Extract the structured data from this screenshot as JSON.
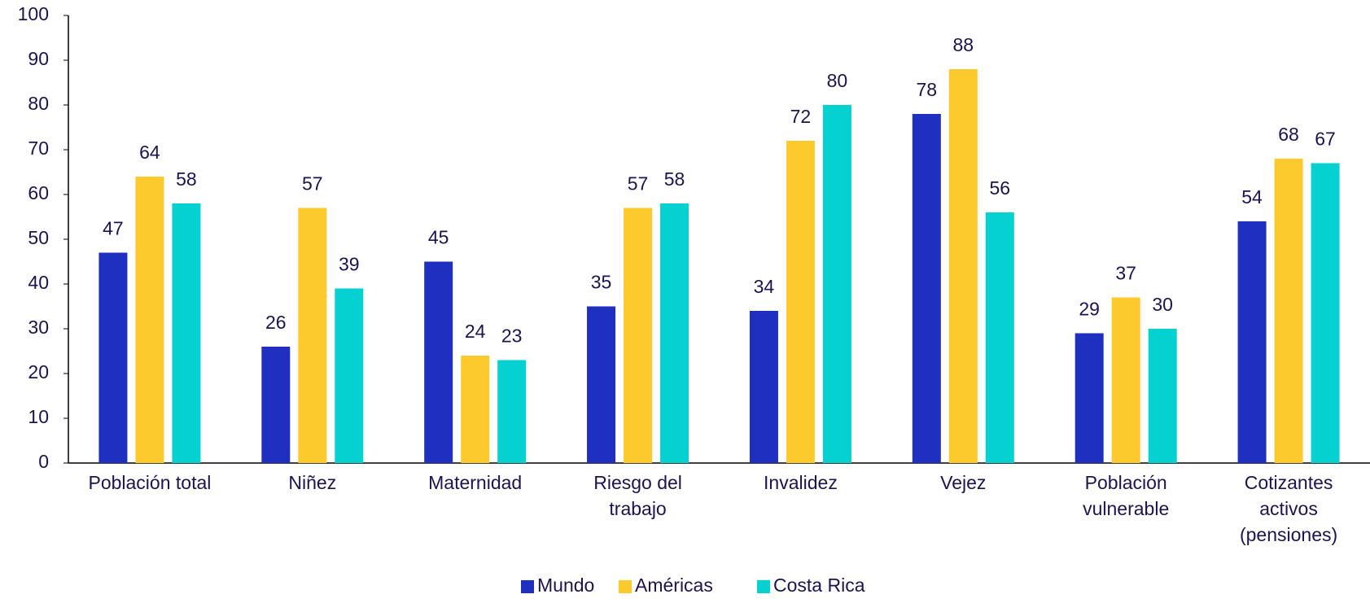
{
  "chart_data": {
    "type": "bar",
    "categories": [
      "Población total",
      "Niñez",
      "Maternidad",
      "Riesgo del\ntrabajo",
      "Invalidez",
      "Vejez",
      "Población\nvulnerable",
      "Cotizantes\nactivos\n(pensiones)"
    ],
    "series": [
      {
        "name": "Mundo",
        "color": "#1f2fc0",
        "values": [
          47,
          26,
          45,
          35,
          34,
          78,
          29,
          54
        ]
      },
      {
        "name": "Américas",
        "color": "#fdca2e",
        "values": [
          64,
          57,
          24,
          57,
          72,
          88,
          37,
          68
        ]
      },
      {
        "name": "Costa Rica",
        "color": "#06d1d1",
        "values": [
          58,
          39,
          23,
          58,
          80,
          56,
          30,
          67
        ]
      }
    ],
    "ylim": [
      0,
      100
    ],
    "yticks": [
      0,
      10,
      20,
      30,
      40,
      50,
      60,
      70,
      80,
      90,
      100
    ],
    "grid": false,
    "legend": "bottom",
    "data_labels": true
  }
}
